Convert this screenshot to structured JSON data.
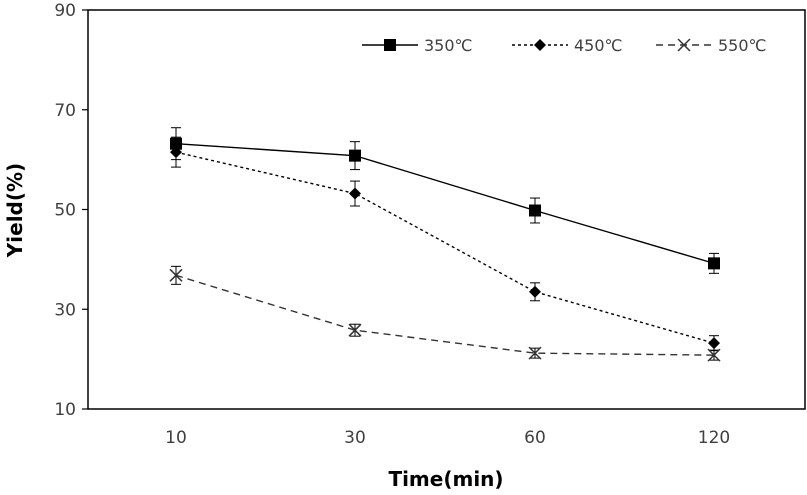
{
  "chart_data": {
    "type": "line",
    "title": "",
    "xlabel": "Time(min)",
    "ylabel": "Yield(%)",
    "categories": [
      "10",
      "30",
      "60",
      "120"
    ],
    "ylim": [
      10,
      90
    ],
    "yticks": [
      "10",
      "30",
      "50",
      "70",
      "90"
    ],
    "grid": false,
    "legend_position": "top-right",
    "series": [
      {
        "name": "350℃",
        "values": [
          63.2,
          60.8,
          49.8,
          39.2
        ],
        "errors": [
          3.2,
          2.8,
          2.5,
          2.0
        ],
        "marker": "square",
        "line_style": "solid",
        "color": "#000000"
      },
      {
        "name": "450℃",
        "values": [
          61.5,
          53.2,
          33.5,
          23.2
        ],
        "errors": [
          3.0,
          2.5,
          1.8,
          1.5
        ],
        "marker": "diamond",
        "line_style": "dotted",
        "color": "#000000"
      },
      {
        "name": "550℃",
        "values": [
          36.8,
          25.8,
          21.2,
          20.8
        ],
        "errors": [
          1.8,
          1.2,
          1.0,
          1.0
        ],
        "marker": "x",
        "line_style": "dashed",
        "color": "#333333"
      }
    ]
  }
}
